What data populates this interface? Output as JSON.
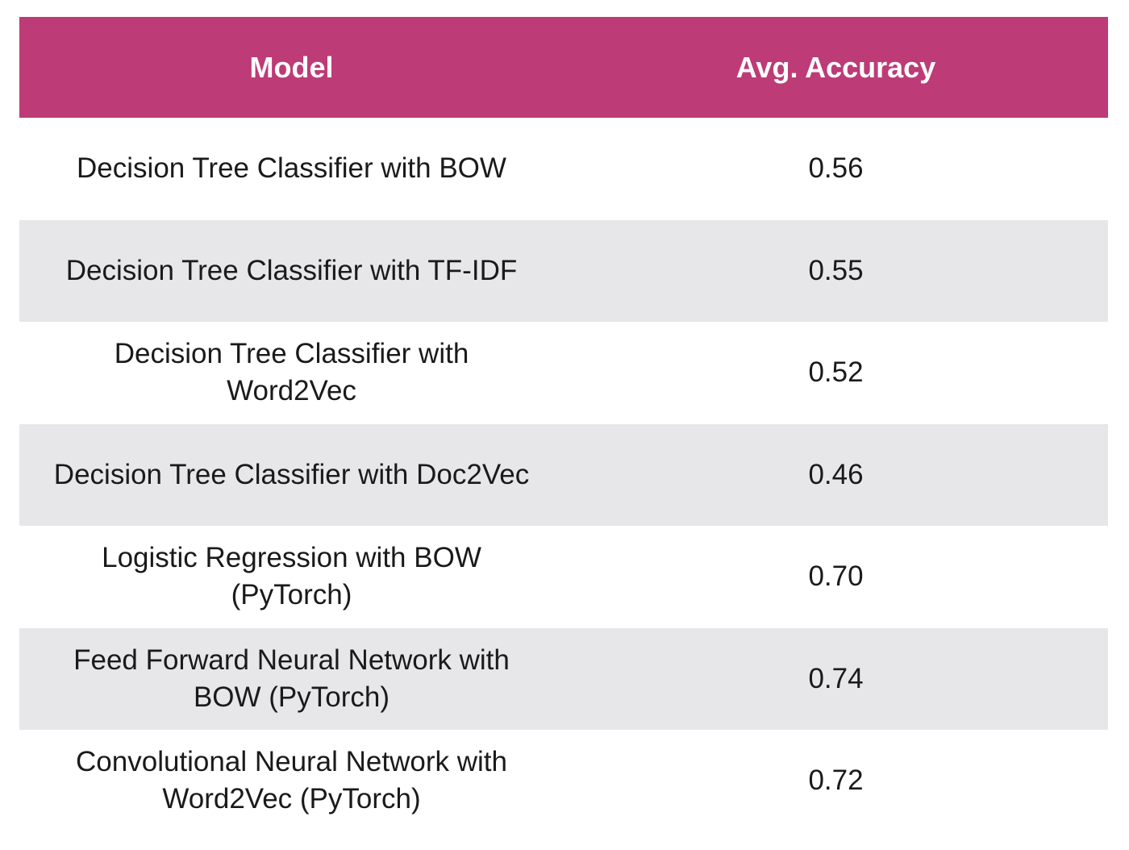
{
  "colors": {
    "header_background": "#bd3b76",
    "header_text": "#ffffff",
    "stripe_background": "#e7e7e9",
    "row_background": "#ffffff",
    "body_text": "#1a1a1a"
  },
  "table": {
    "headers": [
      "Model",
      "Avg. Accuracy"
    ],
    "rows": [
      {
        "model": "Decision Tree Classifier with BOW",
        "accuracy": "0.56"
      },
      {
        "model": "Decision Tree Classifier with TF-IDF",
        "accuracy": "0.55"
      },
      {
        "model": "Decision Tree Classifier with Word2Vec",
        "accuracy": "0.52"
      },
      {
        "model": "Decision Tree Classifier with Doc2Vec",
        "accuracy": "0.46"
      },
      {
        "model": "Logistic Regression with BOW (PyTorch)",
        "accuracy": "0.70"
      },
      {
        "model": "Feed Forward Neural Network with BOW (PyTorch)",
        "accuracy": "0.74"
      },
      {
        "model": "Convolutional Neural Network with Word2Vec (PyTorch)",
        "accuracy": "0.72"
      }
    ]
  }
}
